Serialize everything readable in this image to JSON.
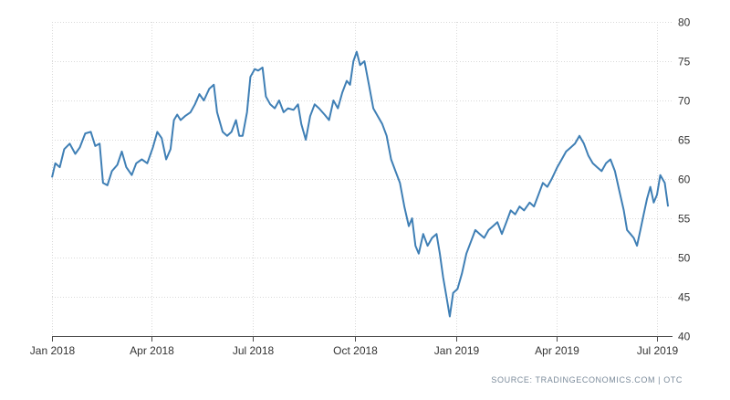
{
  "source": "SOURCE: TRADINGECONOMICS.COM | OTC",
  "colors": {
    "line": "#3f7fb5",
    "grid": "#d9d9d9",
    "axis": "#4a4a4a"
  },
  "chart_data": {
    "type": "line",
    "title": "",
    "xlabel": "",
    "ylabel": "",
    "ylim": [
      40,
      80
    ],
    "yticks": [
      40,
      45,
      50,
      55,
      60,
      65,
      70,
      75,
      80
    ],
    "xlim": [
      "2018-01-01",
      "2019-07-15"
    ],
    "xticks": [
      {
        "label": "Jan 2018",
        "date": "2018-01-01"
      },
      {
        "label": "Apr 2018",
        "date": "2018-04-01"
      },
      {
        "label": "Jul 2018",
        "date": "2018-07-01"
      },
      {
        "label": "Oct 2018",
        "date": "2018-10-01"
      },
      {
        "label": "Jan 2019",
        "date": "2019-01-01"
      },
      {
        "label": "Apr 2019",
        "date": "2019-04-01"
      },
      {
        "label": "Jul 2019",
        "date": "2019-07-01"
      }
    ],
    "y_axis_position": "right",
    "grid": true,
    "series": [
      {
        "points": [
          [
            "2018-01-01",
            60.2
          ],
          [
            "2018-01-04",
            62.0
          ],
          [
            "2018-01-08",
            61.5
          ],
          [
            "2018-01-12",
            63.8
          ],
          [
            "2018-01-17",
            64.5
          ],
          [
            "2018-01-22",
            63.2
          ],
          [
            "2018-01-26",
            64.0
          ],
          [
            "2018-01-31",
            65.8
          ],
          [
            "2018-02-05",
            66.0
          ],
          [
            "2018-02-09",
            64.2
          ],
          [
            "2018-02-13",
            64.5
          ],
          [
            "2018-02-16",
            59.5
          ],
          [
            "2018-02-20",
            59.2
          ],
          [
            "2018-02-24",
            61.0
          ],
          [
            "2018-03-01",
            61.8
          ],
          [
            "2018-03-05",
            63.5
          ],
          [
            "2018-03-09",
            61.5
          ],
          [
            "2018-03-14",
            60.5
          ],
          [
            "2018-03-18",
            62.0
          ],
          [
            "2018-03-23",
            62.5
          ],
          [
            "2018-03-28",
            62.0
          ],
          [
            "2018-04-02",
            64.0
          ],
          [
            "2018-04-06",
            66.0
          ],
          [
            "2018-04-10",
            65.2
          ],
          [
            "2018-04-14",
            62.5
          ],
          [
            "2018-04-18",
            63.8
          ],
          [
            "2018-04-21",
            67.5
          ],
          [
            "2018-04-24",
            68.2
          ],
          [
            "2018-04-27",
            67.5
          ],
          [
            "2018-05-01",
            68.0
          ],
          [
            "2018-05-06",
            68.5
          ],
          [
            "2018-05-10",
            69.5
          ],
          [
            "2018-05-14",
            70.8
          ],
          [
            "2018-05-18",
            70.0
          ],
          [
            "2018-05-23",
            71.5
          ],
          [
            "2018-05-27",
            72.0
          ],
          [
            "2018-05-30",
            68.5
          ],
          [
            "2018-06-04",
            66.0
          ],
          [
            "2018-06-08",
            65.5
          ],
          [
            "2018-06-12",
            66.0
          ],
          [
            "2018-06-16",
            67.5
          ],
          [
            "2018-06-19",
            65.5
          ],
          [
            "2018-06-22",
            65.5
          ],
          [
            "2018-06-26",
            68.5
          ],
          [
            "2018-06-29",
            73.0
          ],
          [
            "2018-07-03",
            74.0
          ],
          [
            "2018-07-06",
            73.8
          ],
          [
            "2018-07-10",
            74.2
          ],
          [
            "2018-07-13",
            70.5
          ],
          [
            "2018-07-17",
            69.5
          ],
          [
            "2018-07-21",
            69.0
          ],
          [
            "2018-07-25",
            70.0
          ],
          [
            "2018-07-29",
            68.5
          ],
          [
            "2018-08-02",
            69.0
          ],
          [
            "2018-08-07",
            68.8
          ],
          [
            "2018-08-11",
            69.5
          ],
          [
            "2018-08-14",
            67.0
          ],
          [
            "2018-08-18",
            65.0
          ],
          [
            "2018-08-22",
            68.0
          ],
          [
            "2018-08-26",
            69.5
          ],
          [
            "2018-08-30",
            69.0
          ],
          [
            "2018-09-04",
            68.2
          ],
          [
            "2018-09-08",
            67.5
          ],
          [
            "2018-09-12",
            70.0
          ],
          [
            "2018-09-16",
            69.0
          ],
          [
            "2018-09-20",
            71.0
          ],
          [
            "2018-09-24",
            72.5
          ],
          [
            "2018-09-27",
            72.0
          ],
          [
            "2018-09-30",
            75.0
          ],
          [
            "2018-10-03",
            76.2
          ],
          [
            "2018-10-06",
            74.5
          ],
          [
            "2018-10-10",
            75.0
          ],
          [
            "2018-10-14",
            72.0
          ],
          [
            "2018-10-18",
            69.0
          ],
          [
            "2018-10-22",
            68.0
          ],
          [
            "2018-10-26",
            67.0
          ],
          [
            "2018-10-30",
            65.5
          ],
          [
            "2018-11-03",
            62.5
          ],
          [
            "2018-11-07",
            61.0
          ],
          [
            "2018-11-11",
            59.5
          ],
          [
            "2018-11-15",
            56.5
          ],
          [
            "2018-11-19",
            54.0
          ],
          [
            "2018-11-22",
            55.0
          ],
          [
            "2018-11-25",
            51.5
          ],
          [
            "2018-11-28",
            50.5
          ],
          [
            "2018-12-02",
            53.0
          ],
          [
            "2018-12-06",
            51.5
          ],
          [
            "2018-12-10",
            52.5
          ],
          [
            "2018-12-14",
            53.0
          ],
          [
            "2018-12-17",
            50.5
          ],
          [
            "2018-12-20",
            47.5
          ],
          [
            "2018-12-23",
            45.0
          ],
          [
            "2018-12-26",
            42.5
          ],
          [
            "2018-12-29",
            45.5
          ],
          [
            "2019-01-02",
            46.0
          ],
          [
            "2019-01-06",
            48.0
          ],
          [
            "2019-01-10",
            50.5
          ],
          [
            "2019-01-14",
            52.0
          ],
          [
            "2019-01-18",
            53.5
          ],
          [
            "2019-01-22",
            53.0
          ],
          [
            "2019-01-26",
            52.5
          ],
          [
            "2019-01-30",
            53.5
          ],
          [
            "2019-02-03",
            54.0
          ],
          [
            "2019-02-07",
            54.5
          ],
          [
            "2019-02-11",
            53.0
          ],
          [
            "2019-02-15",
            54.5
          ],
          [
            "2019-02-19",
            56.0
          ],
          [
            "2019-02-23",
            55.5
          ],
          [
            "2019-02-27",
            56.5
          ],
          [
            "2019-03-03",
            56.0
          ],
          [
            "2019-03-08",
            57.0
          ],
          [
            "2019-03-12",
            56.5
          ],
          [
            "2019-03-16",
            58.0
          ],
          [
            "2019-03-20",
            59.5
          ],
          [
            "2019-03-24",
            59.0
          ],
          [
            "2019-03-28",
            60.0
          ],
          [
            "2019-04-02",
            61.5
          ],
          [
            "2019-04-06",
            62.5
          ],
          [
            "2019-04-10",
            63.5
          ],
          [
            "2019-04-14",
            64.0
          ],
          [
            "2019-04-18",
            64.5
          ],
          [
            "2019-04-22",
            65.5
          ],
          [
            "2019-04-26",
            64.5
          ],
          [
            "2019-04-30",
            63.0
          ],
          [
            "2019-05-04",
            62.0
          ],
          [
            "2019-05-08",
            61.5
          ],
          [
            "2019-05-12",
            61.0
          ],
          [
            "2019-05-16",
            62.0
          ],
          [
            "2019-05-20",
            62.5
          ],
          [
            "2019-05-24",
            61.0
          ],
          [
            "2019-05-28",
            58.5
          ],
          [
            "2019-06-01",
            56.0
          ],
          [
            "2019-06-04",
            53.5
          ],
          [
            "2019-06-07",
            53.0
          ],
          [
            "2019-06-10",
            52.5
          ],
          [
            "2019-06-13",
            51.5
          ],
          [
            "2019-06-16",
            53.5
          ],
          [
            "2019-06-19",
            55.5
          ],
          [
            "2019-06-22",
            57.5
          ],
          [
            "2019-06-25",
            59.0
          ],
          [
            "2019-06-28",
            57.0
          ],
          [
            "2019-07-01",
            58.0
          ],
          [
            "2019-07-04",
            60.5
          ],
          [
            "2019-07-08",
            59.5
          ],
          [
            "2019-07-11",
            56.5
          ]
        ]
      }
    ]
  }
}
